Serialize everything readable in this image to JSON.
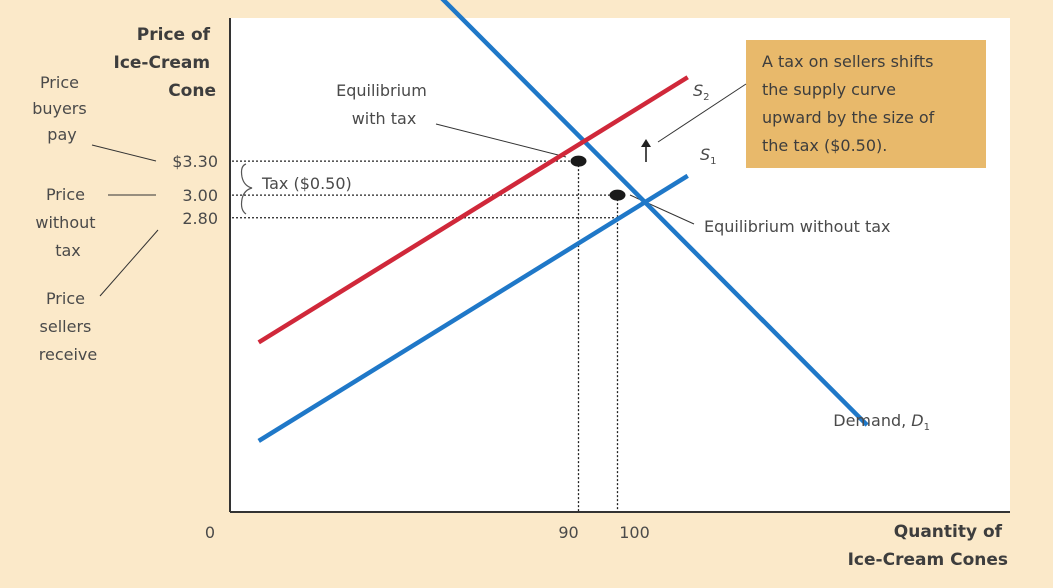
{
  "chart_data": {
    "type": "line",
    "ylabel": [
      "Price of",
      "Ice-Cream",
      "Cone"
    ],
    "xlabel": [
      "Quantity of",
      "Ice-Cream Cones"
    ],
    "x_ticks": [
      {
        "label": "0",
        "value": 0
      },
      {
        "label": "90",
        "value": 90
      },
      {
        "label": "100",
        "value": 100
      }
    ],
    "y_ticks": [
      {
        "label": "$3.30",
        "value": 3.3
      },
      {
        "label": "3.00",
        "value": 3.0
      },
      {
        "label": "2.80",
        "value": 2.8
      }
    ],
    "series": [
      {
        "name": "Demand, D1",
        "label_main": "Demand, D",
        "label_sub": "1",
        "color": "#1f78c8",
        "points": [
          [
            54,
            4.77
          ],
          [
            164,
            0.97
          ]
        ]
      },
      {
        "name": "S1",
        "label_main": "S",
        "label_sub": "1",
        "color": "#1f78c8",
        "points": [
          [
            8,
            0.83
          ],
          [
            118,
            3.17
          ]
        ]
      },
      {
        "name": "S2",
        "label_main": "S",
        "label_sub": "2",
        "color": "#d0283a",
        "points": [
          [
            8,
            1.7
          ],
          [
            118,
            4.04
          ]
        ]
      }
    ],
    "equilibria": [
      {
        "label": "Equilibrium with tax",
        "x": 90,
        "y": 3.3
      },
      {
        "label": "Equilibrium without tax",
        "x": 100,
        "y": 3.0
      }
    ],
    "left_labels": {
      "buyers": [
        "Price",
        "buyers",
        "pay"
      ],
      "without": [
        "Price",
        "without",
        "tax"
      ],
      "sellers": [
        "Price",
        "sellers",
        "receive"
      ]
    },
    "annotations": {
      "tax_bracket": "Tax ($0.50)",
      "eq_with_tax": [
        "Equilibrium",
        "with tax"
      ],
      "eq_without_tax": "Equilibrium without tax",
      "callout": [
        "A tax on sellers shifts",
        "the supply curve",
        "upward by the size of",
        "the tax ($0.50)."
      ]
    },
    "colors": {
      "background": "#fbe9c9",
      "plot": "#ffffff",
      "callout": "#e8b96b",
      "supply_demand": "#1f78c8",
      "taxed_supply": "#d0283a"
    }
  }
}
